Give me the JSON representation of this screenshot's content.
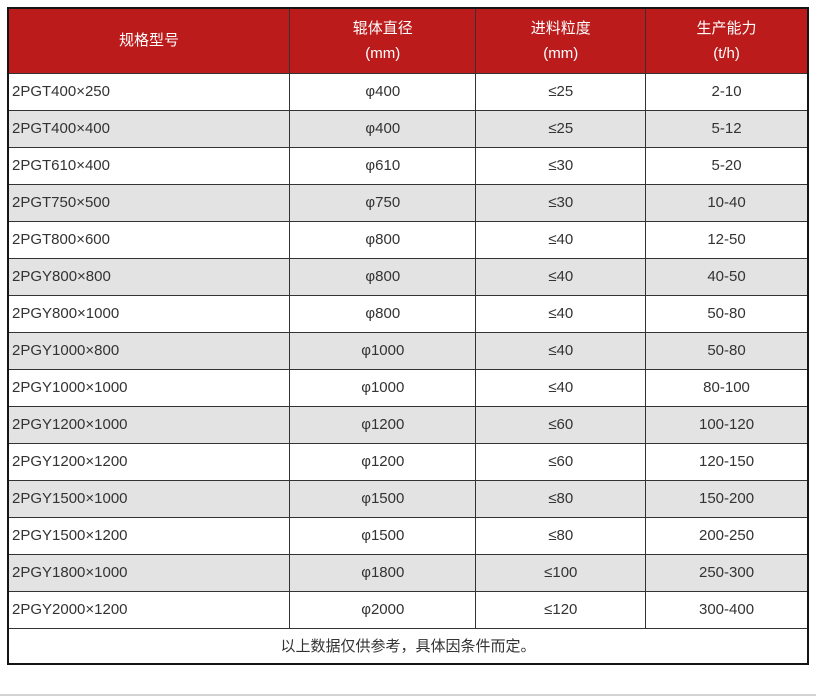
{
  "table": {
    "columns": [
      {
        "label": "规格型号",
        "unit": ""
      },
      {
        "label": "辊体直径",
        "unit": "(mm)"
      },
      {
        "label": "进料粒度",
        "unit": "(mm)"
      },
      {
        "label": "生产能力",
        "unit": "(t/h)"
      }
    ],
    "rows": [
      [
        "2PGT400×250",
        "φ400",
        "≤25",
        "2-10"
      ],
      [
        "2PGT400×400",
        "φ400",
        "≤25",
        "5-12"
      ],
      [
        "2PGT610×400",
        "φ610",
        "≤30",
        "5-20"
      ],
      [
        "2PGT750×500",
        "φ750",
        "≤30",
        "10-40"
      ],
      [
        "2PGT800×600",
        "φ800",
        "≤40",
        "12-50"
      ],
      [
        "2PGY800×800",
        "φ800",
        "≤40",
        "40-50"
      ],
      [
        "2PGY800×1000",
        "φ800",
        "≤40",
        "50-80"
      ],
      [
        "2PGY1000×800",
        "φ1000",
        "≤40",
        "50-80"
      ],
      [
        "2PGY1000×1000",
        "φ1000",
        "≤40",
        "80-100"
      ],
      [
        "2PGY1200×1000",
        "φ1200",
        "≤60",
        "100-120"
      ],
      [
        "2PGY1200×1200",
        "φ1200",
        "≤60",
        "120-150"
      ],
      [
        "2PGY1500×1000",
        "φ1500",
        "≤80",
        "150-200"
      ],
      [
        "2PGY1500×1200",
        "φ1500",
        "≤80",
        "200-250"
      ],
      [
        "2PGY1800×1000",
        "φ1800",
        "≤100",
        "250-300"
      ],
      [
        "2PGY2000×1200",
        "φ2000",
        "≤120",
        "300-400"
      ]
    ],
    "footnote": "以上数据仅供参考，具体因条件而定。",
    "column_widths_percent": [
      35.2,
      23.3,
      21.2,
      20.3
    ]
  },
  "colors": {
    "header_bg": "#bb1b1b",
    "header_text": "#ffffff",
    "alt_row_bg": "#e3e3e3",
    "row_bg": "#ffffff",
    "border": "#333333",
    "outer_border": "#151515",
    "body_text": "#333333"
  }
}
